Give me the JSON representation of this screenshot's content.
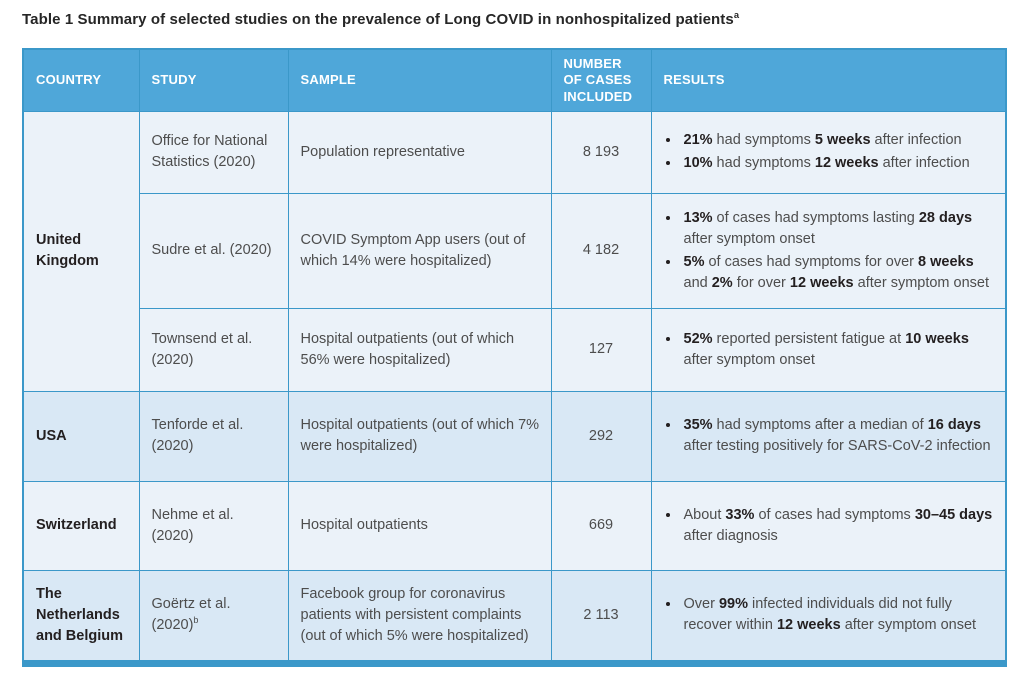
{
  "title": {
    "text": "Table 1 Summary of selected studies on the prevalence of Long COVID in nonhospitalized patients",
    "superscript": "a"
  },
  "colors": {
    "header_bg": "#4FA7D9",
    "border": "#3B98C9",
    "row_light": "#EBF2F9",
    "row_shaded": "#D9E8F5",
    "header_text": "#FFFFFF",
    "body_text": "#4D4D4D",
    "bold_text": "#231F20",
    "title_text": "#262626"
  },
  "table": {
    "columns": [
      "COUNTRY",
      "STUDY",
      "SAMPLE",
      "NUMBER OF CASES INCLUDED",
      "RESULTS"
    ],
    "groups": [
      {
        "country": "United Kingdom",
        "shaded": false,
        "studies": [
          {
            "study": "Office for National Statistics (2020)",
            "study_sup": "",
            "sample": "Population representative",
            "cases": "8 193",
            "results": [
              [
                {
                  "t": "21%",
                  "b": true
                },
                {
                  "t": " had symptoms ",
                  "b": false
                },
                {
                  "t": "5 weeks",
                  "b": true
                },
                {
                  "t": " after infection",
                  "b": false
                }
              ],
              [
                {
                  "t": "10%",
                  "b": true
                },
                {
                  "t": " had symptoms ",
                  "b": false
                },
                {
                  "t": "12 weeks",
                  "b": true
                },
                {
                  "t": " after infection",
                  "b": false
                }
              ]
            ]
          },
          {
            "study": "Sudre et al. (2020)",
            "study_sup": "",
            "sample": "COVID Symptom App users (out of which 14% were hospitalized)",
            "cases": "4 182",
            "results": [
              [
                {
                  "t": "13%",
                  "b": true
                },
                {
                  "t": " of cases had symptoms lasting ",
                  "b": false
                },
                {
                  "t": "28 days",
                  "b": true
                },
                {
                  "t": " after symptom onset",
                  "b": false
                }
              ],
              [
                {
                  "t": "5%",
                  "b": true
                },
                {
                  "t": " of cases had symptoms for over ",
                  "b": false
                },
                {
                  "t": "8 weeks",
                  "b": true
                },
                {
                  "t": " and ",
                  "b": false
                },
                {
                  "t": "2%",
                  "b": true
                },
                {
                  "t": " for over ",
                  "b": false
                },
                {
                  "t": "12 weeks",
                  "b": true
                },
                {
                  "t": " after symptom onset",
                  "b": false
                }
              ]
            ]
          },
          {
            "study": "Townsend et al. (2020)",
            "study_sup": "",
            "sample": "Hospital outpatients (out of which 56% were hospitalized)",
            "cases": "127",
            "results": [
              [
                {
                  "t": "52%",
                  "b": true
                },
                {
                  "t": " reported persistent fatigue at ",
                  "b": false
                },
                {
                  "t": "10 weeks",
                  "b": true
                },
                {
                  "t": " after symptom onset",
                  "b": false
                }
              ]
            ]
          }
        ]
      },
      {
        "country": "USA",
        "shaded": true,
        "studies": [
          {
            "study": "Tenforde et al. (2020)",
            "study_sup": "",
            "sample": "Hospital outpatients (out of which 7% were hospitalized)",
            "cases": "292",
            "results": [
              [
                {
                  "t": "35%",
                  "b": true
                },
                {
                  "t": " had symptoms after a median of ",
                  "b": false
                },
                {
                  "t": "16 days",
                  "b": true
                },
                {
                  "t": " after testing positively for SARS-CoV-2 infection",
                  "b": false
                }
              ]
            ]
          }
        ]
      },
      {
        "country": "Switzerland",
        "shaded": false,
        "studies": [
          {
            "study": "Nehme et al. (2020)",
            "study_sup": "",
            "sample": "Hospital outpatients",
            "cases": "669",
            "results": [
              [
                {
                  "t": "About ",
                  "b": false
                },
                {
                  "t": "33%",
                  "b": true
                },
                {
                  "t": " of cases had symptoms ",
                  "b": false
                },
                {
                  "t": "30–45 days",
                  "b": true
                },
                {
                  "t": " after diagnosis",
                  "b": false
                }
              ]
            ]
          }
        ]
      },
      {
        "country": "The Netherlands and Belgium",
        "shaded": true,
        "studies": [
          {
            "study": "Goërtz et al. (2020)",
            "study_sup": "b",
            "sample": "Facebook group for coronavirus patients with persistent complaints (out of which 5% were hospitalized)",
            "cases": "2 113",
            "results": [
              [
                {
                  "t": "Over ",
                  "b": false
                },
                {
                  "t": "99%",
                  "b": true
                },
                {
                  "t": " infected individuals did not fully recover within ",
                  "b": false
                },
                {
                  "t": "12 weeks",
                  "b": true
                },
                {
                  "t": " after symptom onset",
                  "b": false
                }
              ]
            ]
          }
        ]
      }
    ]
  }
}
